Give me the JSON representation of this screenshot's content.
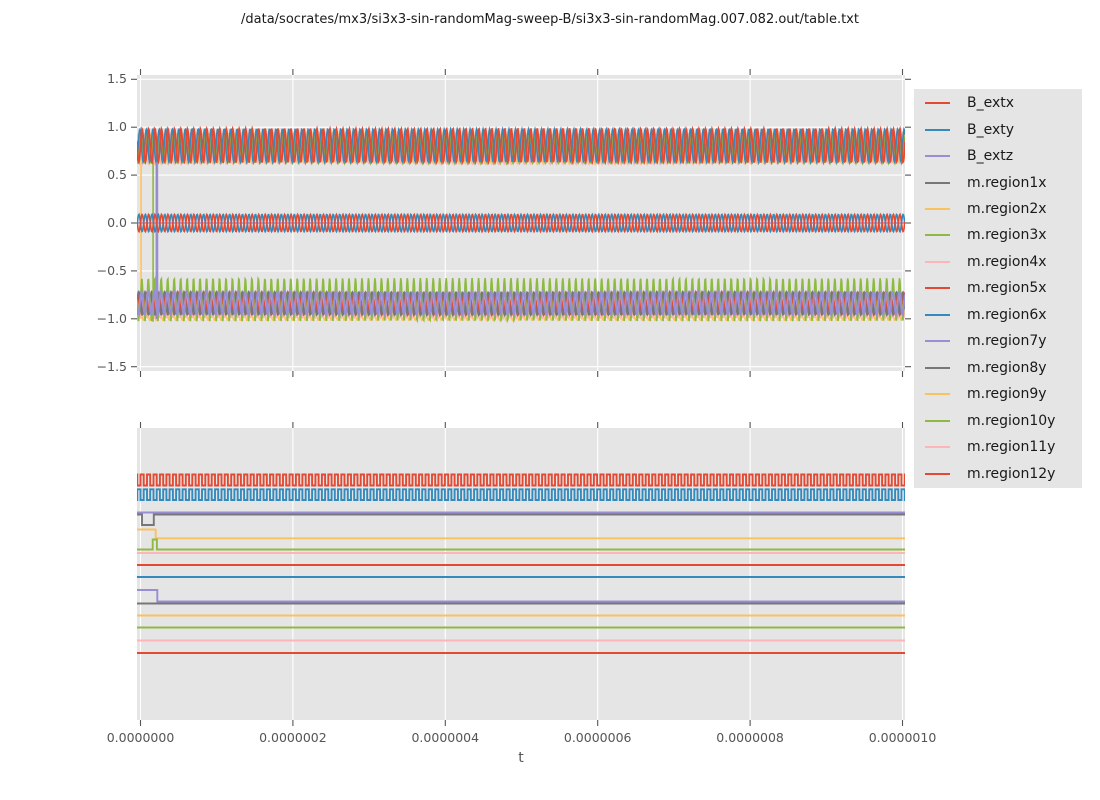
{
  "header": {
    "title": "/data/socrates/mx3/si3x3-sin-randomMag-sweep-B/si3x3-sin-randomMag.007.082.out/table.txt"
  },
  "colors": {
    "red": "#E24A33",
    "blue": "#348ABD",
    "purple": "#988ED5",
    "gray": "#777777",
    "orange": "#FBC15E",
    "green": "#8EBA42",
    "pink": "#FFB5B8",
    "plot_bg": "#E5E5E5",
    "grid": "#FFFFFF",
    "tick": "#555555",
    "text": "#1A1A1A"
  },
  "legend": {
    "items": [
      {
        "label": "B_extx",
        "color": "red"
      },
      {
        "label": "B_exty",
        "color": "blue"
      },
      {
        "label": "B_extz",
        "color": "purple"
      },
      {
        "label": "m.region1x",
        "color": "gray"
      },
      {
        "label": "m.region2x",
        "color": "orange"
      },
      {
        "label": "m.region3x",
        "color": "green"
      },
      {
        "label": "m.region4x",
        "color": "pink"
      },
      {
        "label": "m.region5x",
        "color": "red"
      },
      {
        "label": "m.region6x",
        "color": "blue"
      },
      {
        "label": "m.region7y",
        "color": "purple"
      },
      {
        "label": "m.region8y",
        "color": "gray"
      },
      {
        "label": "m.region9y",
        "color": "orange"
      },
      {
        "label": "m.region10y",
        "color": "green"
      },
      {
        "label": "m.region11y",
        "color": "pink"
      },
      {
        "label": "m.region12y",
        "color": "red"
      }
    ]
  },
  "axes": {
    "x": {
      "label": "t",
      "tick_values": [
        0,
        2e-07,
        4e-07,
        6e-07,
        8e-07,
        1e-06
      ],
      "tick_labels": [
        "0.0000000",
        "0.0000002",
        "0.0000004",
        "0.0000006",
        "0.0000008",
        "0.0000010"
      ]
    }
  },
  "chart_data": [
    {
      "id": "top-plot",
      "type": "line",
      "xlabel": "t",
      "ylabel": "",
      "xlim": [
        -4.6e-09,
        1.0033e-06
      ],
      "ylim": [
        -1.55,
        1.55
      ],
      "grid": true,
      "y_ticks": [
        1.5,
        1.0,
        0.5,
        0.0,
        -0.5,
        -1.0,
        -1.5
      ],
      "y_tick_labels": [
        "1.5",
        "1.0",
        "0.5",
        "0.0",
        "−0.5",
        "−1.0",
        "−1.5"
      ],
      "carrier_period_ns": 8.5,
      "series": [
        {
          "name": "m.region9y",
          "color": "orange",
          "kind": "sine",
          "mean": -0.96,
          "amp": 0.055,
          "phase": 0.3
        },
        {
          "name": "m.region2x",
          "color": "orange",
          "kind": "sine",
          "mean": 0.78,
          "amp": 0.15,
          "phase": 0.6,
          "transient": {
            "t_ns": 0.6,
            "v_min": -1.0,
            "v_max": 0.89
          }
        },
        {
          "name": "m.region11y",
          "color": "pink",
          "kind": "sine",
          "mean": -0.86,
          "amp": 0.13,
          "phase": 0.7
        },
        {
          "name": "m.region4x",
          "color": "pink",
          "kind": "sine",
          "mean": 0.78,
          "amp": 0.16,
          "phase": 0.45
        },
        {
          "name": "m.region12y",
          "color": "red",
          "kind": "sine",
          "mean": -0.84,
          "amp": 0.11,
          "phase": 0.4
        },
        {
          "name": "m.region8y",
          "color": "gray",
          "kind": "sine",
          "mean": -0.84,
          "amp": 0.12,
          "phase": 0.55
        },
        {
          "name": "m.region1x",
          "color": "gray",
          "kind": "sine",
          "mean": 0.8,
          "amp": 0.16,
          "phase": 0.15,
          "transient": {
            "t_ns": 21.0,
            "v_min": -1.0,
            "v_max": 0.9
          }
        },
        {
          "name": "m.region3x",
          "color": "green",
          "kind": "sine",
          "mean": 0.78,
          "amp": 0.155,
          "phase": 0.25,
          "transient": {
            "t_ns": 16.5,
            "v_min": -1.03,
            "v_max": 0.91
          }
        },
        {
          "name": "m.region10y",
          "color": "green",
          "kind": "sine_spiky",
          "mean": -0.8,
          "amp": 0.225,
          "sharp": 2.2,
          "phase": 0.05
        },
        {
          "name": "m.region7y",
          "color": "purple",
          "kind": "sine",
          "mean": -0.835,
          "amp": 0.12,
          "phase": 0.1,
          "lw": 1.9,
          "transient": {
            "t_ns": 21.9,
            "v_min": -1.0,
            "v_max": 0.9
          }
        },
        {
          "name": "B_extz",
          "color": "purple",
          "kind": "flat",
          "value": 0.0
        },
        {
          "name": "m.region6x",
          "color": "blue",
          "kind": "sine",
          "mean": 0.81,
          "amp": 0.17,
          "phase": 0.35
        },
        {
          "name": "B_exty",
          "color": "blue",
          "kind": "sine",
          "mean": 0.0,
          "amp": 0.09,
          "phase": 0.5
        },
        {
          "name": "m.region5x",
          "color": "red",
          "kind": "sine",
          "mean": 0.81,
          "amp": 0.175,
          "phase": 0.0,
          "lw": 1.7
        },
        {
          "name": "B_extx",
          "color": "red",
          "kind": "sine",
          "mean": 0.0,
          "amp": 0.09,
          "phase": 0.0
        }
      ]
    },
    {
      "id": "bottom-plot",
      "type": "line",
      "note": "no y tick labels shown; levels given as fraction of plot height (0=top)",
      "xlim": [
        -4.6e-09,
        1.0033e-06
      ],
      "grid": true,
      "carrier_period_ns": 8.5,
      "series": [
        {
          "name": "B_extx",
          "color": "red",
          "kind": "square",
          "hi_frac": 0.1592,
          "lo_frac": 0.1969,
          "phase": 0.0
        },
        {
          "name": "B_exty",
          "color": "blue",
          "kind": "square",
          "hi_frac": 0.21,
          "lo_frac": 0.2466,
          "phase": 0.5
        },
        {
          "name": "B_extz",
          "color": "purple",
          "kind": "flat",
          "frac": 0.2894
        },
        {
          "name": "m.region1x",
          "color": "gray",
          "kind": "flat",
          "frac": 0.2962,
          "pulse": {
            "t0_ns": 2.0,
            "t1_ns": 17.5,
            "frac": 0.3322
          }
        },
        {
          "name": "m.region2x",
          "color": "orange",
          "kind": "flat",
          "frac": 0.3476,
          "step": {
            "t_ns": 20.0,
            "to_frac": 0.3777
          }
        },
        {
          "name": "m.region3x",
          "color": "green",
          "kind": "flat",
          "frac": 0.4161,
          "pulse": {
            "t0_ns": 16.0,
            "t1_ns": 21.5,
            "frac": 0.3818
          }
        },
        {
          "name": "m.region4x",
          "color": "pink",
          "kind": "flat",
          "frac": 0.428
        },
        {
          "name": "m.region5x",
          "color": "red",
          "kind": "flat",
          "frac": 0.4692
        },
        {
          "name": "m.region6x",
          "color": "blue",
          "kind": "flat",
          "frac": 0.5103
        },
        {
          "name": "m.region7y",
          "color": "purple",
          "kind": "flat",
          "frac": 0.5548,
          "step": {
            "t_ns": 22.0,
            "to_frac": 0.5942
          }
        },
        {
          "name": "m.region8y",
          "color": "gray",
          "kind": "flat",
          "frac": 0.601
        },
        {
          "name": "m.region9y",
          "color": "orange",
          "kind": "flat",
          "frac": 0.6421
        },
        {
          "name": "m.region10y",
          "color": "green",
          "kind": "flat",
          "frac": 0.6832
        },
        {
          "name": "m.region11y",
          "color": "pink",
          "kind": "flat",
          "frac": 0.7277
        },
        {
          "name": "m.region12y",
          "color": "red",
          "kind": "flat",
          "frac": 0.7705
        }
      ]
    }
  ]
}
